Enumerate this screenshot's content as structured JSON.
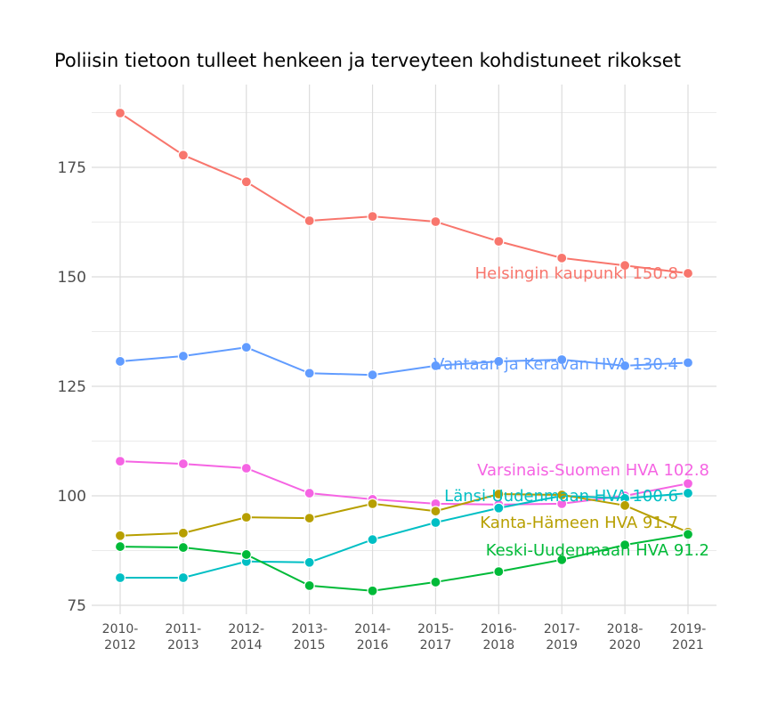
{
  "chart_data": {
    "type": "line",
    "title": "Poliisin tietoon tulleet henkeen ja terveyteen kohdistuneet rikokset",
    "xlabel": "",
    "ylabel": "",
    "categories": [
      "2010-2012",
      "2011-2013",
      "2012-2014",
      "2013-2015",
      "2014-2016",
      "2015-2017",
      "2016-2018",
      "2017-2019",
      "2018-2020",
      "2019-2021"
    ],
    "ylim": [
      73,
      194
    ],
    "yticks": [
      75,
      100,
      125,
      150,
      175
    ],
    "grid": true,
    "legend": "none (direct labels at end of lines)",
    "series": [
      {
        "name": "Helsingin kaupunki",
        "label": "Helsingin kaupunki 150.8",
        "color": "#F8766D",
        "values": [
          187.4,
          177.8,
          171.7,
          162.8,
          163.8,
          162.6,
          158.1,
          154.3,
          152.6,
          150.8
        ]
      },
      {
        "name": "Vantaan ja Keravan HVA",
        "label": "Vantaan ja Keravan HVA 130.4",
        "color": "#619CFF",
        "values": [
          130.7,
          131.9,
          133.9,
          128.0,
          127.6,
          129.7,
          130.7,
          131.1,
          129.7,
          130.4
        ]
      },
      {
        "name": "Varsinais-Suomen HVA",
        "label": "Varsinais-Suomen HVA 102.8",
        "color": "#F564E3",
        "values": [
          107.9,
          107.3,
          106.3,
          100.6,
          99.2,
          98.2,
          98.0,
          98.2,
          100.0,
          102.8
        ]
      },
      {
        "name": "Länsi-Uudenmaan HVA",
        "label": "Länsi-Uudenmaan HVA 100.6",
        "color": "#00BFC4",
        "values": [
          81.3,
          81.3,
          85.0,
          84.8,
          90.0,
          93.9,
          97.2,
          100.0,
          99.4,
          100.6
        ]
      },
      {
        "name": "Kanta-Hämeen HVA",
        "label": "Kanta-Hämeen HVA 91.7",
        "color": "#B79F00",
        "values": [
          90.9,
          91.5,
          95.1,
          94.9,
          98.2,
          96.5,
          100.4,
          100.2,
          97.8,
          91.7
        ]
      },
      {
        "name": "Keski-Uudenmaan HVA",
        "label": "Keski-Uudenmaan HVA 91.2",
        "color": "#00BA38",
        "values": [
          88.4,
          88.2,
          86.6,
          79.5,
          78.3,
          80.3,
          82.7,
          85.4,
          88.8,
          91.2
        ]
      }
    ]
  }
}
